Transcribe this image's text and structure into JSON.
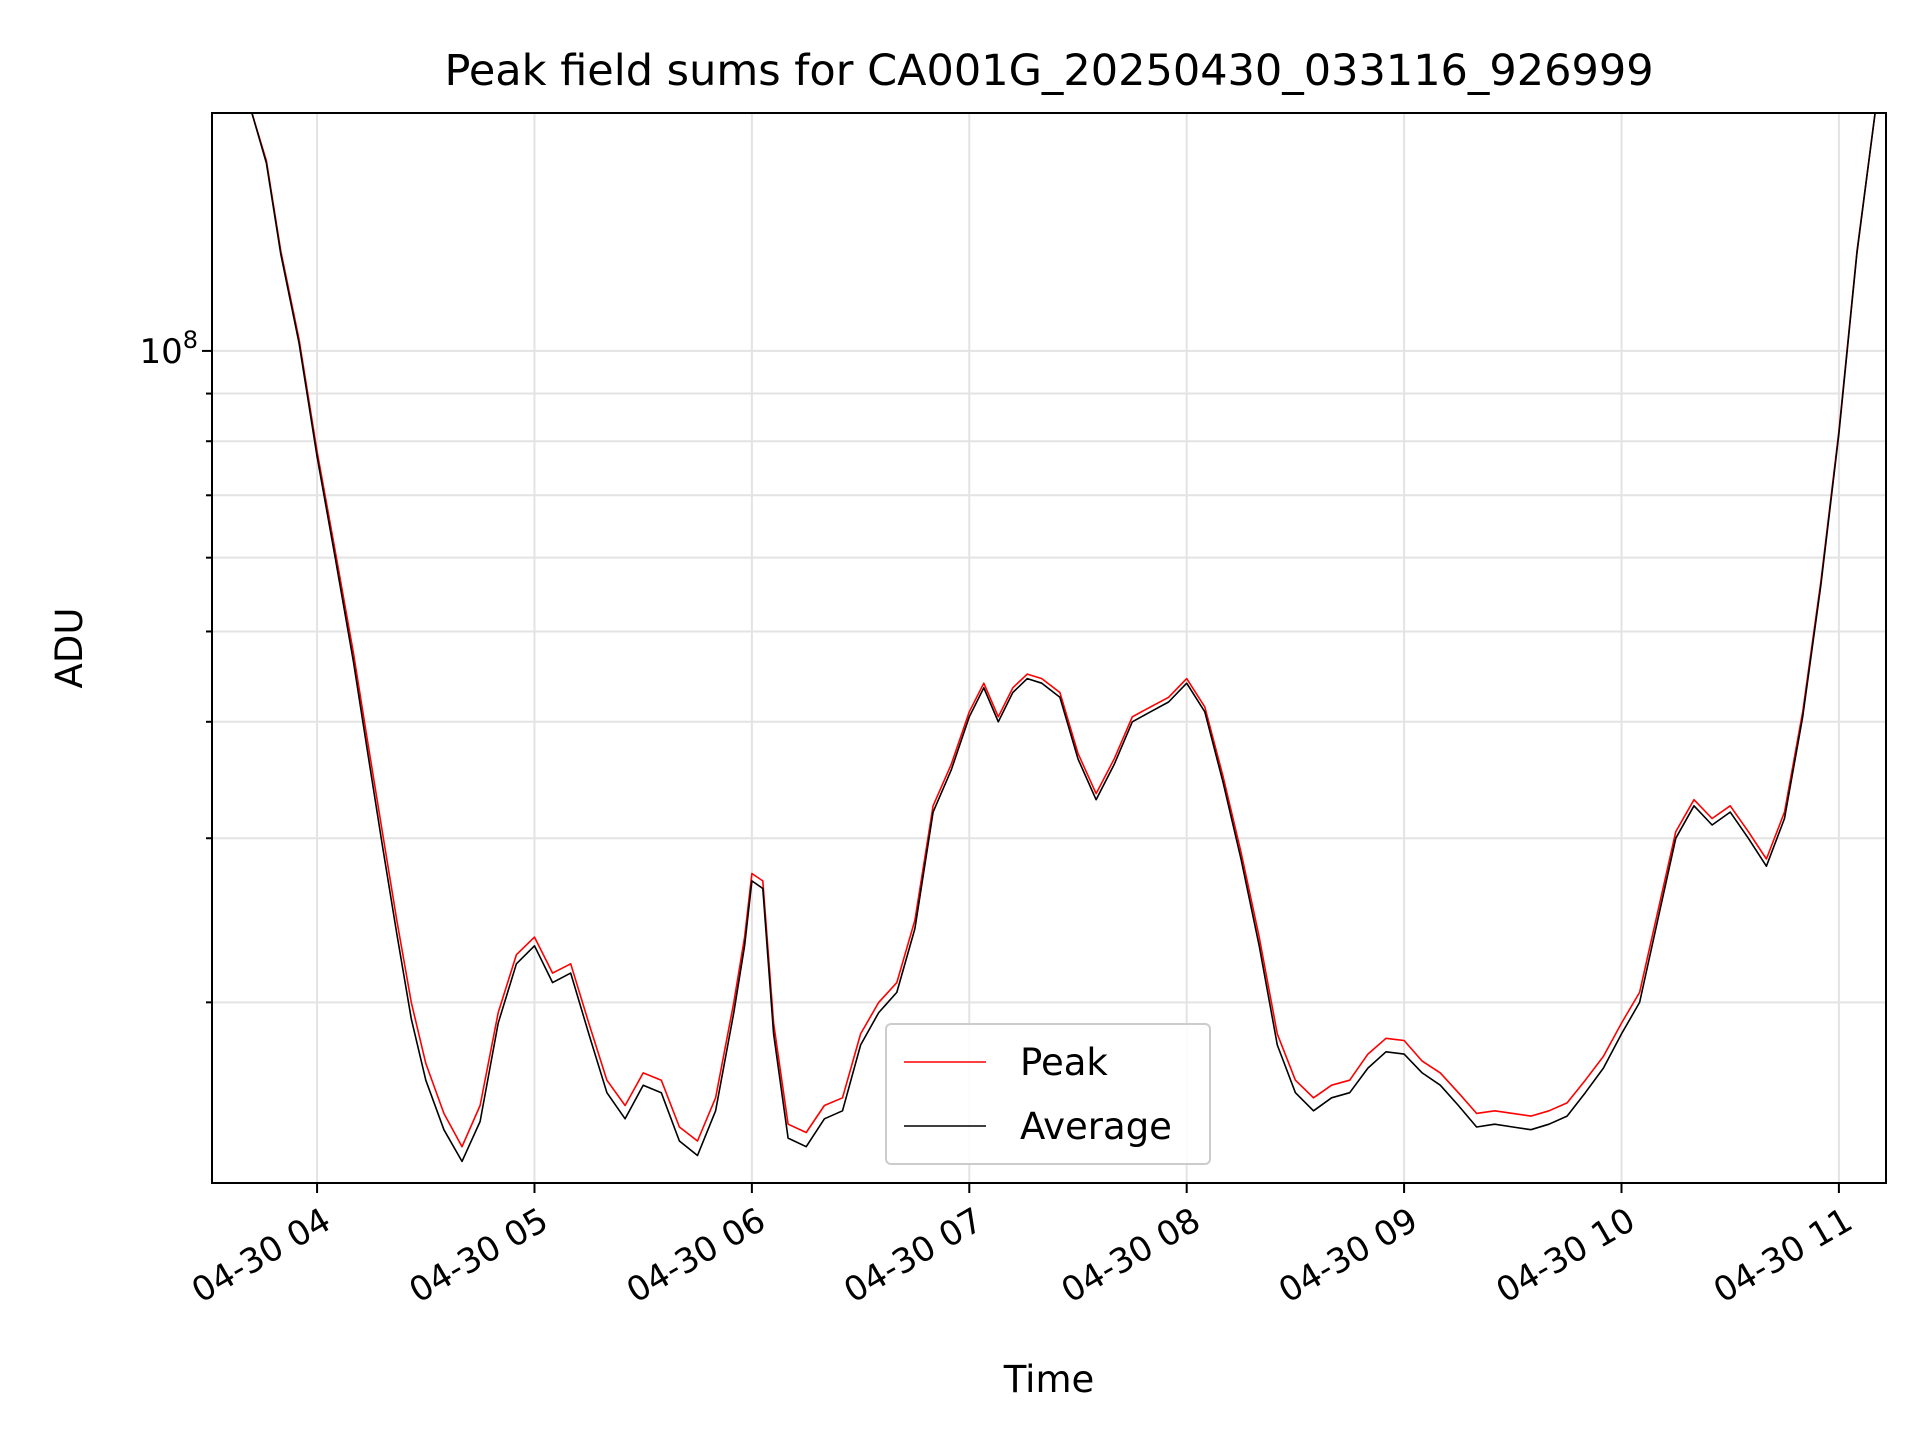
{
  "chart_data": {
    "type": "line",
    "title": "Peak field sums for CA001G_20250430_033116_926999",
    "xlabel": "Time",
    "ylabel": "ADU",
    "x_ticks": [
      "04-30 04",
      "04-30 05",
      "04-30 06",
      "04-30 07",
      "04-30 08",
      "04-30 09",
      "04-30 10",
      "04-30 11"
    ],
    "y_scale": "log",
    "y_tick_major": "10^8",
    "xlim": [
      "2025-04-30 03:31",
      "2025-04-30 11:13"
    ],
    "ylim": [
      12800000,
      180000000
    ],
    "grid": true,
    "legend_position": "lower center",
    "series": [
      {
        "name": "Peak",
        "color": "#ff0000",
        "x": [
          "03:36",
          "03:42",
          "03:46",
          "03:50",
          "03:55",
          "04:00",
          "04:05",
          "04:10",
          "04:14",
          "04:18",
          "04:22",
          "04:26",
          "04:30",
          "04:35",
          "04:40",
          "04:45",
          "04:50",
          "04:55",
          "05:00",
          "05:05",
          "05:10",
          "05:15",
          "05:20",
          "05:25",
          "05:30",
          "05:35",
          "05:40",
          "05:45",
          "05:50",
          "05:55",
          "05:58",
          "06:00",
          "06:03",
          "06:06",
          "06:10",
          "06:15",
          "06:20",
          "06:25",
          "06:30",
          "06:35",
          "06:40",
          "06:45",
          "06:50",
          "06:55",
          "07:00",
          "07:04",
          "07:08",
          "07:12",
          "07:16",
          "07:20",
          "07:25",
          "07:30",
          "07:35",
          "07:40",
          "07:45",
          "07:50",
          "07:55",
          "08:00",
          "08:05",
          "08:10",
          "08:15",
          "08:20",
          "08:25",
          "08:30",
          "08:35",
          "08:40",
          "08:45",
          "08:50",
          "08:55",
          "09:00",
          "09:05",
          "09:10",
          "09:15",
          "09:20",
          "09:25",
          "09:30",
          "09:35",
          "09:40",
          "09:45",
          "09:50",
          "09:55",
          "10:00",
          "10:05",
          "10:10",
          "10:15",
          "10:20",
          "10:25",
          "10:30",
          "10:35",
          "10:40",
          "10:45",
          "10:50",
          "10:55",
          "11:00",
          "11:05",
          "11:10"
        ],
        "values": [
          180000000,
          180000000,
          160000000,
          128000000,
          103000000,
          78000000,
          61000000,
          47500000,
          38000000,
          30500000,
          24500000,
          20000000,
          17200000,
          15200000,
          14000000,
          15500000,
          19500000,
          22500000,
          23500000,
          21500000,
          22000000,
          19000000,
          16500000,
          15500000,
          16800000,
          16500000,
          14700000,
          14200000,
          15800000,
          20000000,
          23500000,
          27500000,
          27000000,
          19000000,
          14800000,
          14500000,
          15500000,
          15800000,
          18500000,
          20000000,
          21000000,
          24500000,
          32500000,
          36000000,
          41000000,
          44000000,
          40500000,
          43500000,
          45000000,
          44500000,
          43000000,
          37000000,
          33500000,
          36500000,
          40500000,
          41500000,
          42500000,
          44500000,
          41500000,
          35000000,
          29000000,
          23500000,
          18500000,
          16500000,
          15800000,
          16300000,
          16500000,
          17600000,
          18300000,
          18200000,
          17300000,
          16800000,
          16000000,
          15200000,
          15300000,
          15200000,
          15100000,
          15300000,
          15600000,
          16500000,
          17500000,
          19000000,
          20500000,
          25000000,
          30500000,
          33000000,
          31500000,
          32500000,
          30500000,
          28500000,
          32000000,
          41000000,
          56500000,
          82000000,
          128000000,
          180000000
        ]
      },
      {
        "name": "Average",
        "color": "#000000",
        "x": [
          "03:36",
          "03:42",
          "03:46",
          "03:50",
          "03:55",
          "04:00",
          "04:05",
          "04:10",
          "04:14",
          "04:18",
          "04:22",
          "04:26",
          "04:30",
          "04:35",
          "04:40",
          "04:45",
          "04:50",
          "04:55",
          "05:00",
          "05:05",
          "05:10",
          "05:15",
          "05:20",
          "05:25",
          "05:30",
          "05:35",
          "05:40",
          "05:45",
          "05:50",
          "05:55",
          "05:58",
          "06:00",
          "06:03",
          "06:06",
          "06:10",
          "06:15",
          "06:20",
          "06:25",
          "06:30",
          "06:35",
          "06:40",
          "06:45",
          "06:50",
          "06:55",
          "07:00",
          "07:04",
          "07:08",
          "07:12",
          "07:16",
          "07:20",
          "07:25",
          "07:30",
          "07:35",
          "07:40",
          "07:45",
          "07:50",
          "07:55",
          "08:00",
          "08:05",
          "08:10",
          "08:15",
          "08:20",
          "08:25",
          "08:30",
          "08:35",
          "08:40",
          "08:45",
          "08:50",
          "08:55",
          "09:00",
          "09:05",
          "09:10",
          "09:15",
          "09:20",
          "09:25",
          "09:30",
          "09:35",
          "09:40",
          "09:45",
          "09:50",
          "09:55",
          "10:00",
          "10:05",
          "10:10",
          "10:15",
          "10:20",
          "10:25",
          "10:30",
          "10:35",
          "10:40",
          "10:45",
          "10:50",
          "10:55",
          "11:00",
          "11:05",
          "11:10"
        ],
        "values": [
          180000000,
          180000000,
          159000000,
          127000000,
          102000000,
          77000000,
          60000000,
          46500000,
          37000000,
          29500000,
          23700000,
          19200000,
          16500000,
          14600000,
          13500000,
          14900000,
          19000000,
          22000000,
          23000000,
          21000000,
          21500000,
          18500000,
          16000000,
          15000000,
          16300000,
          16000000,
          14200000,
          13700000,
          15300000,
          19500000,
          23000000,
          27000000,
          26500000,
          18500000,
          14300000,
          14000000,
          15000000,
          15300000,
          18000000,
          19500000,
          20500000,
          24000000,
          32000000,
          35500000,
          40500000,
          43500000,
          40000000,
          43000000,
          44500000,
          44000000,
          42500000,
          36500000,
          33000000,
          36000000,
          40000000,
          41000000,
          42000000,
          44000000,
          41000000,
          34500000,
          28500000,
          23000000,
          18000000,
          16000000,
          15300000,
          15800000,
          16000000,
          17000000,
          17700000,
          17600000,
          16800000,
          16300000,
          15500000,
          14700000,
          14800000,
          14700000,
          14600000,
          14800000,
          15100000,
          16000000,
          17000000,
          18500000,
          20000000,
          24500000,
          30000000,
          32500000,
          31000000,
          32000000,
          30000000,
          28000000,
          31500000,
          40500000,
          56000000,
          81500000,
          127500000,
          180000000
        ]
      }
    ]
  }
}
